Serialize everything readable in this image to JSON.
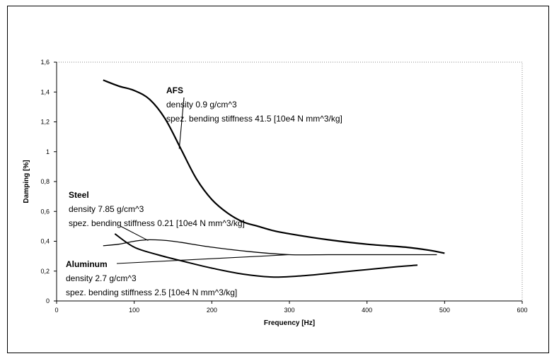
{
  "chart_data": {
    "type": "line",
    "title": "",
    "xlabel": "Frequency [Hz]",
    "ylabel": "Damping [%]",
    "xlim": [
      0,
      600
    ],
    "ylim": [
      0,
      1.6
    ],
    "x_ticks": [
      "0",
      "100",
      "200",
      "300",
      "400",
      "500",
      "600"
    ],
    "y_ticks": [
      "0",
      "0,2",
      "0,4",
      "0,6",
      "0,8",
      "1",
      "1,2",
      "1,4",
      "1,6"
    ],
    "grid": false,
    "series": [
      {
        "name": "AFS",
        "x": [
          60,
          80,
          100,
          120,
          140,
          160,
          180,
          200,
          220,
          240,
          260,
          280,
          300,
          350,
          400,
          450,
          480,
          500
        ],
        "values": [
          1.48,
          1.44,
          1.41,
          1.35,
          1.22,
          1.02,
          0.82,
          0.68,
          0.59,
          0.53,
          0.5,
          0.47,
          0.45,
          0.41,
          0.38,
          0.36,
          0.34,
          0.32
        ]
      },
      {
        "name": "Steel",
        "x": [
          60,
          80,
          100,
          120,
          150,
          200,
          250,
          300,
          350,
          400,
          450,
          490
        ],
        "values": [
          0.37,
          0.38,
          0.4,
          0.41,
          0.4,
          0.36,
          0.33,
          0.31,
          0.31,
          0.31,
          0.31,
          0.31
        ]
      },
      {
        "name": "Aluminum",
        "x": [
          75,
          100,
          130,
          160,
          200,
          240,
          280,
          320,
          360,
          400,
          440,
          465
        ],
        "values": [
          0.45,
          0.36,
          0.31,
          0.27,
          0.22,
          0.18,
          0.16,
          0.17,
          0.19,
          0.21,
          0.23,
          0.24
        ]
      }
    ],
    "annotations": [
      {
        "name": "AFS",
        "lines": [
          "density 0.9 g/cm^3",
          "spez. bending stiffness 41.5 [10e4 N mm^3/kg]"
        ],
        "point": [
          158,
          1.02
        ]
      },
      {
        "name": "Steel",
        "lines": [
          "density 7.85 g/cm^3",
          "spez. bending stiffness 0.21 [10e4 N mm^3/kg]"
        ],
        "point": [
          118,
          0.405
        ]
      },
      {
        "name": "Aluminum",
        "lines": [
          "density 2.7 g/cm^3",
          "spez. bending stiffness 2.5 [10e4 N mm^3/kg]"
        ],
        "point": [
          300,
          0.31
        ]
      }
    ]
  }
}
